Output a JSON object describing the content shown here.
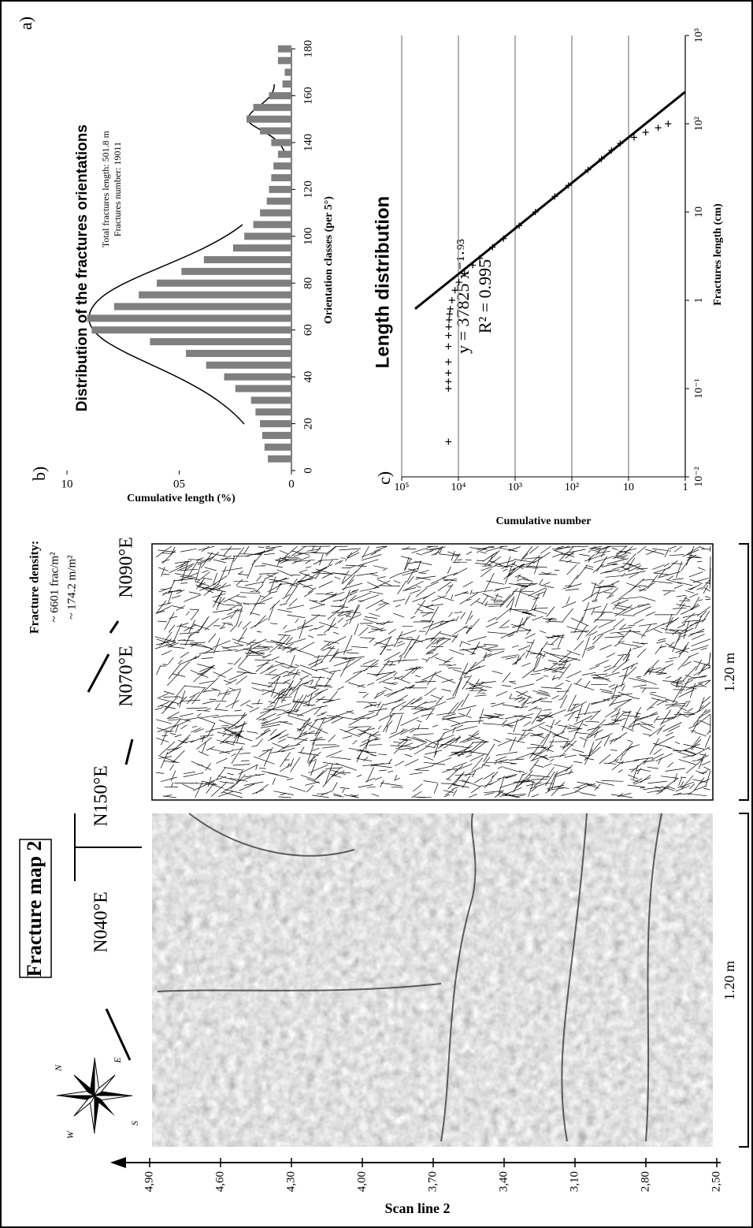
{
  "panel_a": {
    "label": "a)",
    "title": "Fracture map 2",
    "scan_axis": {
      "label": "Scan line 2",
      "ylim": [
        2.5,
        4.9
      ],
      "yticks": [
        {
          "value": 2.5,
          "label": "2,50"
        },
        {
          "value": 2.8,
          "label": "2,80"
        },
        {
          "value": 3.1,
          "label": "3,10"
        },
        {
          "value": 3.4,
          "label": "3,40"
        },
        {
          "value": 3.7,
          "label": "3,70"
        },
        {
          "value": 4.0,
          "label": "4,00"
        },
        {
          "value": 4.3,
          "label": "4,30"
        },
        {
          "value": 4.6,
          "label": "4,60"
        },
        {
          "value": 4.9,
          "label": "4,90"
        }
      ]
    },
    "orientations": [
      "N040°E",
      "N150°E",
      "N070°E",
      "N090°E"
    ],
    "density": [
      "Fracture density:",
      "~ 6601 frac/m²",
      "~ 174.2 m/m²"
    ],
    "scales": [
      "1.20 m",
      "1.20 m"
    ],
    "compass": [
      "N",
      "E",
      "S",
      "W"
    ]
  },
  "chart_data": [
    {
      "type": "bar",
      "label": "b)",
      "title": "Distribution of the fractures orientations",
      "notes": [
        "Total fractures length: 501.8 m",
        "Fractures number: 19011"
      ],
      "ylabel": "Cumulative length (%)",
      "xlabel": "Orientation classes (per 5°)",
      "x": [
        5,
        10,
        15,
        20,
        25,
        30,
        35,
        40,
        45,
        50,
        55,
        60,
        65,
        70,
        75,
        80,
        85,
        90,
        95,
        100,
        105,
        110,
        115,
        120,
        125,
        130,
        135,
        140,
        145,
        150,
        155,
        160,
        165,
        170,
        175,
        180
      ],
      "values": [
        1.05,
        1.2,
        1.3,
        1.4,
        1.6,
        1.8,
        2.5,
        3.0,
        3.8,
        4.7,
        6.3,
        8.9,
        9.1,
        7.9,
        6.8,
        6.0,
        4.9,
        3.9,
        2.6,
        2.1,
        1.7,
        1.4,
        1.1,
        1.0,
        0.9,
        0.8,
        0.6,
        0.9,
        1.4,
        2.0,
        1.7,
        1.0,
        0.4,
        0.3,
        0.6,
        0.6
      ],
      "color": "#7f7f7f",
      "xlim": [
        0,
        180
      ],
      "xticks": [
        0,
        20,
        40,
        60,
        80,
        100,
        120,
        140,
        160,
        180
      ],
      "ylim": [
        0,
        10
      ],
      "yticks": [
        0,
        {
          "value": 5,
          "label": "05"
        },
        10
      ]
    },
    {
      "type": "scatter",
      "label": "c)",
      "title": "Length distribution",
      "equation": "y = 37825 x⁻¹·⁹³",
      "r2": "R² = 0.995",
      "ylabel": "Cumulative number",
      "xlabel": "Fractures length (cm)",
      "log_x": true,
      "log_y": true,
      "grid": true,
      "color": "#000000",
      "x": [
        0.025,
        0.1,
        0.12,
        0.15,
        0.2,
        0.3,
        0.4,
        0.5,
        0.6,
        0.7,
        0.8,
        1,
        1.3,
        1.6,
        2,
        2.5,
        3,
        4,
        5,
        7,
        10,
        15,
        20,
        30,
        40,
        50,
        60,
        70,
        80,
        90,
        100
      ],
      "values": [
        15000,
        15000,
        15000,
        15000,
        15000,
        15000,
        14900,
        14800,
        14600,
        14300,
        13900,
        13000,
        11500,
        9800,
        7800,
        5600,
        4200,
        2500,
        1600,
        850,
        440,
        200,
        115,
        52,
        30,
        20,
        14,
        8,
        5,
        3,
        2
      ],
      "fit": {
        "x": [
          0.8,
          230
        ],
        "values": [
          58000,
          1
        ]
      },
      "xlim": [
        0.01,
        1000
      ],
      "xticks": [
        {
          "value": 0.01,
          "label": "10⁻²"
        },
        {
          "value": 0.1,
          "label": "10⁻¹"
        },
        1,
        10,
        {
          "value": 100,
          "label": "10²"
        },
        {
          "value": 1000,
          "label": "10³"
        }
      ],
      "ylim": [
        1,
        100000
      ],
      "yticks": [
        1,
        10,
        {
          "value": 100,
          "label": "10²"
        },
        {
          "value": 1000,
          "label": "10³"
        },
        {
          "value": 10000,
          "label": "10⁴"
        },
        {
          "value": 100000,
          "label": "10⁵"
        }
      ]
    }
  ]
}
